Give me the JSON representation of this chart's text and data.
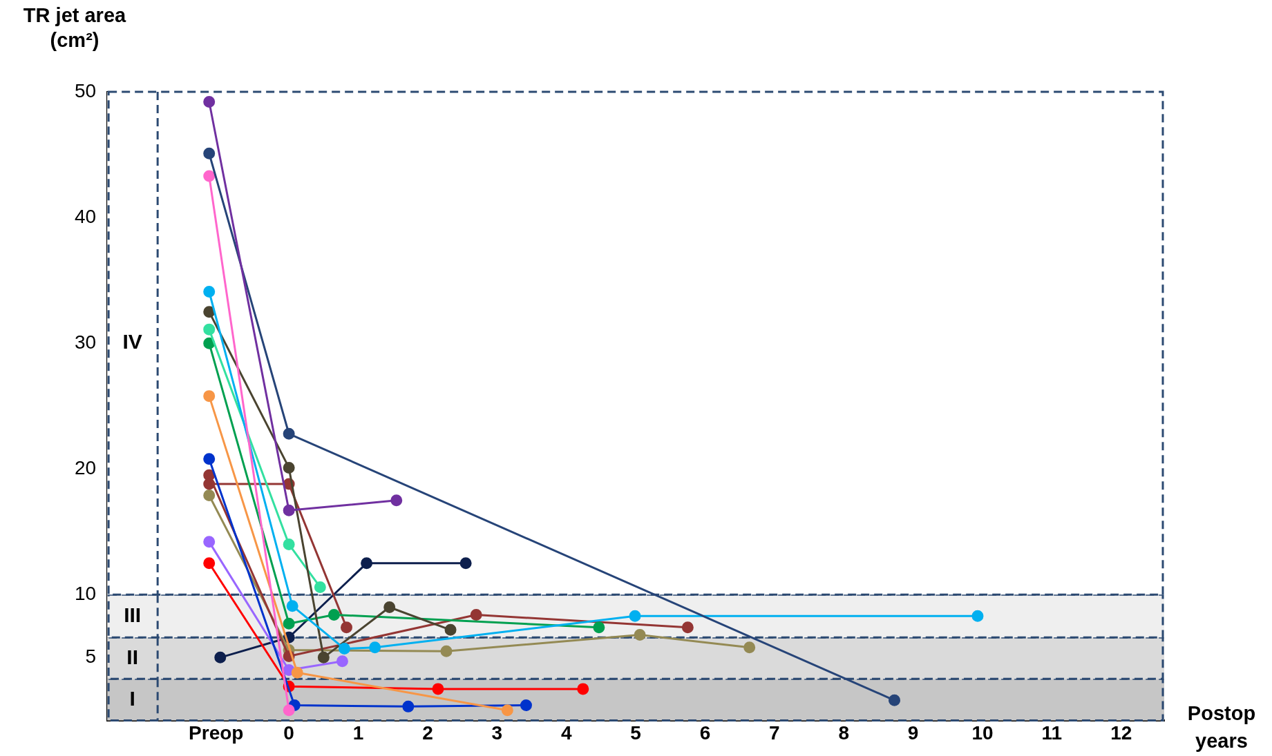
{
  "chart_data": {
    "type": "line",
    "xlabel": "Postop years",
    "ylabel": "TR jet area (cm²)",
    "xlim": [
      -2.62,
      12.62
    ],
    "ylim": [
      0,
      50
    ],
    "xticks": [
      {
        "value": -1.05,
        "label": "Preop"
      },
      0,
      1,
      2,
      3,
      4,
      5,
      6,
      7,
      8,
      9,
      10,
      11,
      12
    ],
    "yticks": [
      5,
      10,
      20,
      30,
      40,
      50
    ],
    "legend": false,
    "marker": "circle",
    "line_style": "solid",
    "bands": [
      {
        "axis": "y",
        "from": 0,
        "to": 3.3,
        "label": "I",
        "color": "#c6c6c6"
      },
      {
        "axis": "y",
        "from": 3.3,
        "to": 6.6,
        "label": "II",
        "color": "#dadada"
      },
      {
        "axis": "y",
        "from": 6.6,
        "to": 10,
        "label": "III",
        "color": "#efefef"
      },
      {
        "axis": "y",
        "from": 10,
        "to": 50,
        "label": "IV",
        "color": "#ffffff"
      }
    ],
    "series": [
      {
        "color": "#7030a0",
        "x": [
          -1.15,
          0,
          1.55
        ],
        "values": [
          49.2,
          16.7,
          17.5
        ]
      },
      {
        "color": "#264478",
        "x": [
          -1.15,
          0,
          8.73
        ],
        "values": [
          45.1,
          22.8,
          1.6
        ]
      },
      {
        "color": "#ff66cc",
        "x": [
          -1.15,
          0
        ],
        "values": [
          43.3,
          0.8
        ]
      },
      {
        "color": "#00b0f0",
        "x": [
          -1.15,
          0.05,
          0.8,
          1.24,
          4.99,
          9.93
        ],
        "values": [
          34.1,
          9.1,
          5.7,
          5.8,
          8.3,
          8.3
        ]
      },
      {
        "color": "#4a4430",
        "x": [
          -1.15,
          0,
          0.5,
          1.45,
          2.33
        ],
        "values": [
          32.5,
          20.1,
          5.0,
          9.0,
          7.2
        ]
      },
      {
        "color": "#33e0a0",
        "x": [
          -1.15,
          0,
          0.45
        ],
        "values": [
          31.1,
          14.0,
          10.6
        ]
      },
      {
        "color": "#00a050",
        "x": [
          -1.15,
          0,
          0.65,
          4.47
        ],
        "values": [
          30.0,
          7.7,
          8.4,
          7.4
        ]
      },
      {
        "color": "#f79646",
        "x": [
          -1.15,
          0.12,
          3.15
        ],
        "values": [
          25.8,
          3.8,
          0.8
        ]
      },
      {
        "color": "#0033cc",
        "x": [
          -1.15,
          0.08,
          1.72,
          3.42
        ],
        "values": [
          20.8,
          1.2,
          1.1,
          1.2
        ]
      },
      {
        "color": "#943634",
        "x": [
          -1.15,
          0,
          2.7,
          5.75
        ],
        "values": [
          19.5,
          5.1,
          8.4,
          7.4
        ]
      },
      {
        "color": "#943634",
        "x": [
          -1.15,
          0,
          0.83
        ],
        "values": [
          18.8,
          18.8,
          7.4
        ]
      },
      {
        "color": "#948a54",
        "x": [
          -1.15,
          0,
          2.27,
          5.06,
          6.64
        ],
        "values": [
          17.9,
          5.6,
          5.5,
          6.8,
          5.8
        ]
      },
      {
        "color": "#9966ff",
        "x": [
          -1.15,
          0,
          0.77
        ],
        "values": [
          14.2,
          4.0,
          4.7
        ]
      },
      {
        "color": "#ff0000",
        "x": [
          -1.15,
          0,
          2.15,
          4.24
        ],
        "values": [
          12.5,
          2.7,
          2.5,
          2.5
        ]
      },
      {
        "color": "#0d1f4d",
        "x": [
          -0.99,
          0,
          1.12,
          2.55
        ],
        "values": [
          5.0,
          6.6,
          12.5,
          12.5
        ]
      }
    ]
  }
}
